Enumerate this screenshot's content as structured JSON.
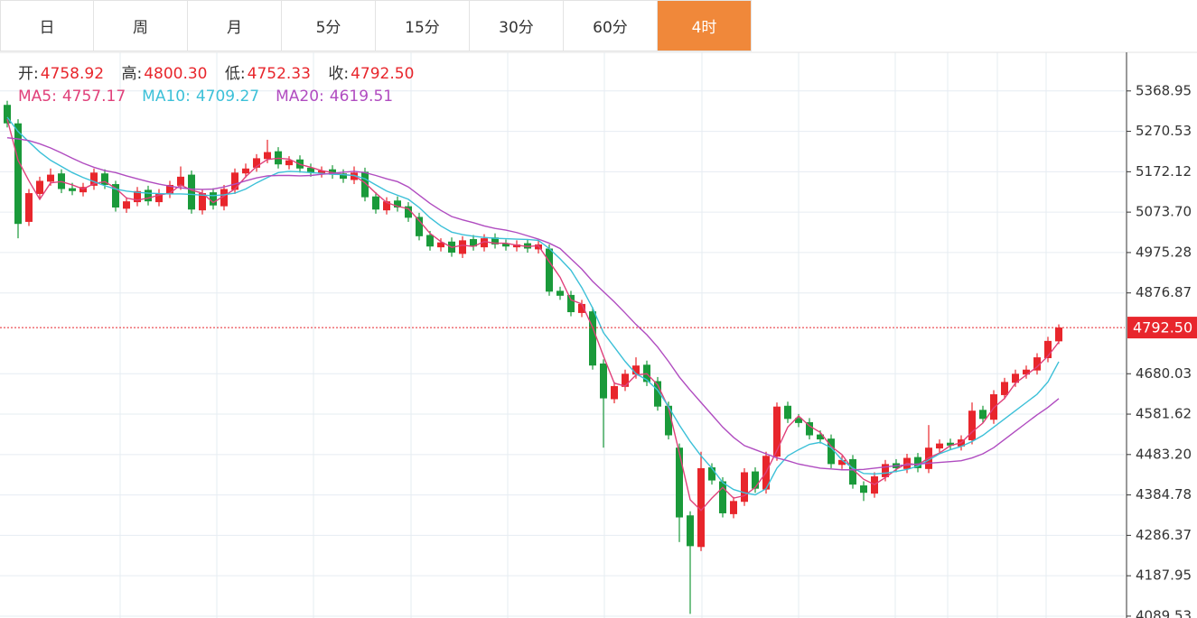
{
  "tabs": [
    "日",
    "周",
    "月",
    "5分",
    "15分",
    "30分",
    "60分",
    "4时"
  ],
  "active_tab": 7,
  "chart_data": {
    "type": "candlestick",
    "ohlc_labels": [
      "开:",
      "高:",
      "低:",
      "收:"
    ],
    "value_labels": {
      "open": "4758.92",
      "high": "4800.30",
      "low": "4752.33",
      "close": "4792.50"
    },
    "up_color": "#e8262c",
    "down_color": "#1a9a3a",
    "grid": true,
    "current_line_color": "#e8262c",
    "ylim": [
      4085,
      5463
    ],
    "yticks": [
      4089.53,
      4187.95,
      4286.37,
      4384.78,
      {
        "value": 4483.2,
        "label": "4483.20"
      },
      4581.62,
      4680.03,
      4876.87,
      4975.28,
      {
        "value": 5073.7,
        "label": "5073.70"
      },
      5172.12,
      5270.53,
      5368.95
    ],
    "open": [
      5335,
      5290,
      5050,
      5118,
      5148,
      5168,
      5132,
      5122,
      5138,
      5168,
      5142,
      5082,
      5098,
      5128,
      5098,
      5118,
      5138,
      5165,
      5078,
      5122,
      5088,
      5128,
      5168,
      5182,
      5203,
      5222,
      5188,
      5202,
      5182,
      5168,
      5178,
      5168,
      5152,
      5172,
      5112,
      5078,
      5102,
      5088,
      5062,
      5018,
      4988,
      5002,
      4972,
      5008,
      4988,
      5012,
      4997,
      4988,
      4998,
      4983,
      4985,
      4882,
      4872,
      4828,
      4832,
      4705,
      4618,
      4648,
      4678,
      4702,
      4662,
      4602,
      4500,
      4335,
      4258,
      4452,
      4418,
      4338,
      4368,
      4442,
      4398,
      4478,
      4602,
      4572,
      4562,
      4532,
      4522,
      4458,
      4472,
      4408,
      4388,
      4428,
      4462,
      4448,
      4477,
      4448,
      4498,
      4512,
      4503,
      4518,
      4592,
      4568,
      4628,
      4658,
      4678,
      4688,
      4718,
      4758.92
    ],
    "high": [
      5345,
      5300,
      5130,
      5160,
      5180,
      5178,
      5145,
      5145,
      5180,
      5178,
      5150,
      5110,
      5135,
      5138,
      5130,
      5150,
      5185,
      5175,
      5130,
      5132,
      5140,
      5180,
      5192,
      5215,
      5250,
      5232,
      5210,
      5212,
      5192,
      5185,
      5188,
      5178,
      5185,
      5182,
      5122,
      5110,
      5112,
      5098,
      5072,
      5028,
      5010,
      5012,
      5015,
      5018,
      5020,
      5022,
      5007,
      5005,
      5008,
      5005,
      4995,
      4892,
      4882,
      4860,
      4842,
      4715,
      4660,
      4690,
      4720,
      4712,
      4672,
      4612,
      4510,
      4345,
      4490,
      4462,
      4428,
      4380,
      4450,
      4452,
      4490,
      4610,
      4612,
      4582,
      4572,
      4542,
      4532,
      4480,
      4482,
      4418,
      4440,
      4470,
      4472,
      4485,
      4487,
      4555,
      4520,
      4522,
      4530,
      4610,
      4602,
      4640,
      4670,
      4690,
      4700,
      4730,
      4770,
      4800.3
    ],
    "low": [
      5280,
      5010,
      5040,
      5108,
      5138,
      5120,
      5115,
      5112,
      5128,
      5130,
      5075,
      5072,
      5088,
      5090,
      5088,
      5108,
      5128,
      5070,
      5068,
      5080,
      5078,
      5118,
      5158,
      5172,
      5193,
      5180,
      5178,
      5170,
      5160,
      5158,
      5155,
      5145,
      5142,
      5100,
      5070,
      5068,
      5075,
      5050,
      5005,
      4980,
      4978,
      4965,
      4962,
      4980,
      4978,
      4985,
      4980,
      4978,
      4975,
      4973,
      4870,
      4860,
      4820,
      4818,
      4690,
      4500,
      4608,
      4638,
      4668,
      4650,
      4590,
      4520,
      4270,
      4095,
      4248,
      4410,
      4330,
      4328,
      4358,
      4390,
      4388,
      4468,
      4560,
      4550,
      4520,
      4510,
      4450,
      4448,
      4400,
      4370,
      4378,
      4418,
      4440,
      4438,
      4440,
      4438,
      4488,
      4495,
      4493,
      4508,
      4560,
      4558,
      4618,
      4648,
      4668,
      4678,
      4708,
      4752.33
    ],
    "close": [
      5290,
      5045,
      5120,
      5150,
      5165,
      5130,
      5125,
      5135,
      5170,
      5140,
      5085,
      5100,
      5125,
      5100,
      5120,
      5140,
      5160,
      5080,
      5120,
      5090,
      5130,
      5170,
      5180,
      5205,
      5220,
      5190,
      5200,
      5180,
      5170,
      5175,
      5165,
      5155,
      5170,
      5110,
      5080,
      5100,
      5085,
      5060,
      5015,
      4990,
      5000,
      4975,
      5005,
      4990,
      5010,
      4995,
      4990,
      4995,
      4985,
      4995,
      4880,
      4870,
      4830,
      4850,
      4700,
      4620,
      4650,
      4680,
      4700,
      4660,
      4600,
      4530,
      4330,
      4260,
      4450,
      4420,
      4340,
      4370,
      4440,
      4400,
      4480,
      4600,
      4570,
      4560,
      4530,
      4520,
      4460,
      4470,
      4410,
      4390,
      4430,
      4460,
      4450,
      4475,
      4450,
      4500,
      4510,
      4505,
      4520,
      4590,
      4570,
      4630,
      4660,
      4680,
      4690,
      4720,
      4760,
      4792.5
    ],
    "series": [
      {
        "name": "MA5:",
        "color": "#e0407a",
        "values": [
          5300,
          5200,
          5150,
          5105,
          5145,
          5148,
          5140,
          5130,
          5143,
          5148,
          5132,
          5108,
          5103,
          5108,
          5115,
          5120,
          5140,
          5127,
          5120,
          5097,
          5113,
          5130,
          5160,
          5185,
          5202,
          5205,
          5203,
          5190,
          5183,
          5175,
          5170,
          5165,
          5163,
          5145,
          5120,
          5097,
          5088,
          5082,
          5053,
          5022,
          5002,
          4988,
          4993,
          4990,
          5002,
          4998,
          4998,
          4993,
          4990,
          4992,
          4953,
          4915,
          4860,
          4850,
          4793,
          4723,
          4657,
          4650,
          4677,
          4680,
          4653,
          4597,
          4487,
          4373,
          4347,
          4377,
          4403,
          4377,
          4383,
          4403,
          4440,
          4493,
          4550,
          4577,
          4553,
          4537,
          4503,
          4483,
          4447,
          4423,
          4410,
          4427,
          4447,
          4462,
          4458,
          4475,
          4487,
          4505,
          4512,
          4538,
          4560,
          4597,
          4620,
          4657,
          4677,
          4697,
          4723,
          4757.17
        ]
      },
      {
        "name": "MA10:",
        "color": "#3cc0d8",
        "values": [
          5305,
          5270,
          5245,
          5220,
          5200,
          5185,
          5170,
          5158,
          5148,
          5138,
          5130,
          5125,
          5122,
          5120,
          5119,
          5118,
          5118,
          5117,
          5115,
          5114,
          5116,
          5120,
          5130,
          5145,
          5158,
          5170,
          5173,
          5172,
          5170,
          5168,
          5166,
          5165,
          5163,
          5155,
          5140,
          5125,
          5115,
          5105,
          5085,
          5060,
          5040,
          5025,
          5019,
          5015,
          5012,
          5010,
          5009,
          5008,
          5007,
          5005,
          4985,
          4960,
          4932,
          4890,
          4840,
          4780,
          4745,
          4710,
          4680,
          4665,
          4640,
          4600,
          4555,
          4515,
          4480,
          4450,
          4415,
          4398,
          4390,
          4385,
          4400,
          4450,
          4480,
          4495,
          4508,
          4513,
          4500,
          4470,
          4450,
          4437,
          4436,
          4438,
          4442,
          4447,
          4455,
          4470,
          4485,
          4495,
          4503,
          4515,
          4530,
          4550,
          4570,
          4590,
          4610,
          4630,
          4660,
          4709.27
        ]
      },
      {
        "name": "MA20:",
        "color": "#b04cc0",
        "values": [
          5255,
          5252,
          5248,
          5240,
          5230,
          5218,
          5205,
          5193,
          5183,
          5175,
          5170,
          5162,
          5155,
          5148,
          5142,
          5137,
          5133,
          5130,
          5129,
          5130,
          5135,
          5142,
          5150,
          5157,
          5162,
          5163,
          5163,
          5162,
          5163,
          5166,
          5168,
          5171,
          5173,
          5170,
          5163,
          5155,
          5148,
          5135,
          5115,
          5095,
          5078,
          5063,
          5055,
          5048,
          5040,
          5034,
          5030,
          5024,
          5016,
          5008,
          4998,
          4985,
          4960,
          4935,
          4905,
          4880,
          4855,
          4828,
          4800,
          4775,
          4745,
          4710,
          4672,
          4640,
          4610,
          4580,
          4550,
          4525,
          4505,
          4495,
          4485,
          4475,
          4468,
          4460,
          4455,
          4450,
          4448,
          4446,
          4446,
          4447,
          4450,
          4453,
          4456,
          4458,
          4460,
          4462,
          4464,
          4466,
          4468,
          4475,
          4485,
          4500,
          4520,
          4540,
          4560,
          4580,
          4598,
          4619.51
        ]
      }
    ]
  }
}
